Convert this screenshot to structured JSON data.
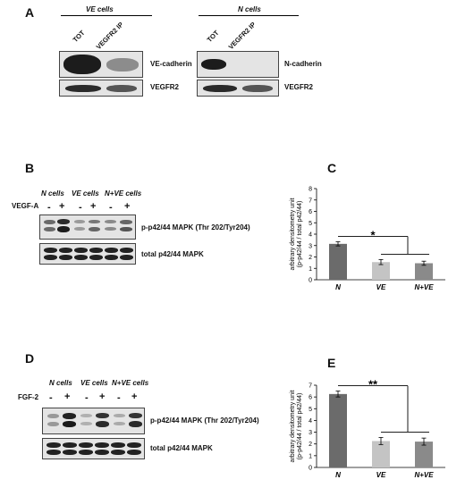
{
  "panelA": {
    "label": "A",
    "ve_group": "VE cells",
    "n_group": "N cells",
    "lane_tot": "TOT",
    "lane_ip": "VEGFR2 IP",
    "ve_blot1": "VE-cadherin",
    "ve_blot2": "VEGFR2",
    "n_blot1": "N-cadherin",
    "n_blot2": "VEGFR2"
  },
  "panelB": {
    "label": "B",
    "groups": [
      "N cells",
      "VE cells",
      "N+VE cells"
    ],
    "treatment": "VEGF-A",
    "signs": [
      "-",
      "+",
      "-",
      "+",
      "-",
      "+"
    ],
    "blot1": "p-p42/44 MAPK (Thr 202/Tyr204)",
    "blot2": "total p42/44 MAPK"
  },
  "panelD": {
    "label": "D",
    "groups": [
      "N cells",
      "VE cells",
      "N+VE cells"
    ],
    "treatment": "FGF-2",
    "signs": [
      "-",
      "+",
      "-",
      "+",
      "-",
      "+"
    ],
    "blot1": "p-p42/44 MAPK (Thr 202/Tyr204)",
    "blot2": "total p42/44 MAPK"
  },
  "chart_data": [
    {
      "panel": "C",
      "type": "bar",
      "categories": [
        "N",
        "VE",
        "N+VE"
      ],
      "values": [
        3.15,
        1.55,
        1.45
      ],
      "errors": [
        0.18,
        0.22,
        0.18
      ],
      "colors": [
        "#6b6b6b",
        "#c4c4c4",
        "#8a8a8a"
      ],
      "ylabel_line1": "arbitrary densitometry unit",
      "ylabel_line2": "(p-p42/44 / total p42/44)",
      "ylim": [
        0,
        8
      ],
      "yticks": [
        0,
        1,
        2,
        3,
        4,
        5,
        6,
        7,
        8
      ],
      "significance": "*"
    },
    {
      "panel": "E",
      "type": "bar",
      "categories": [
        "N",
        "VE",
        "N+VE"
      ],
      "values": [
        6.25,
        2.25,
        2.2
      ],
      "errors": [
        0.25,
        0.3,
        0.3
      ],
      "colors": [
        "#6b6b6b",
        "#c4c4c4",
        "#8a8a8a"
      ],
      "ylabel_line1": "arbitrary densitometry unit",
      "ylabel_line2": "(p-p42/44 / total p42/44)",
      "ylim": [
        0,
        7
      ],
      "yticks": [
        0,
        1,
        2,
        3,
        4,
        5,
        6,
        7
      ],
      "significance": "**"
    }
  ]
}
